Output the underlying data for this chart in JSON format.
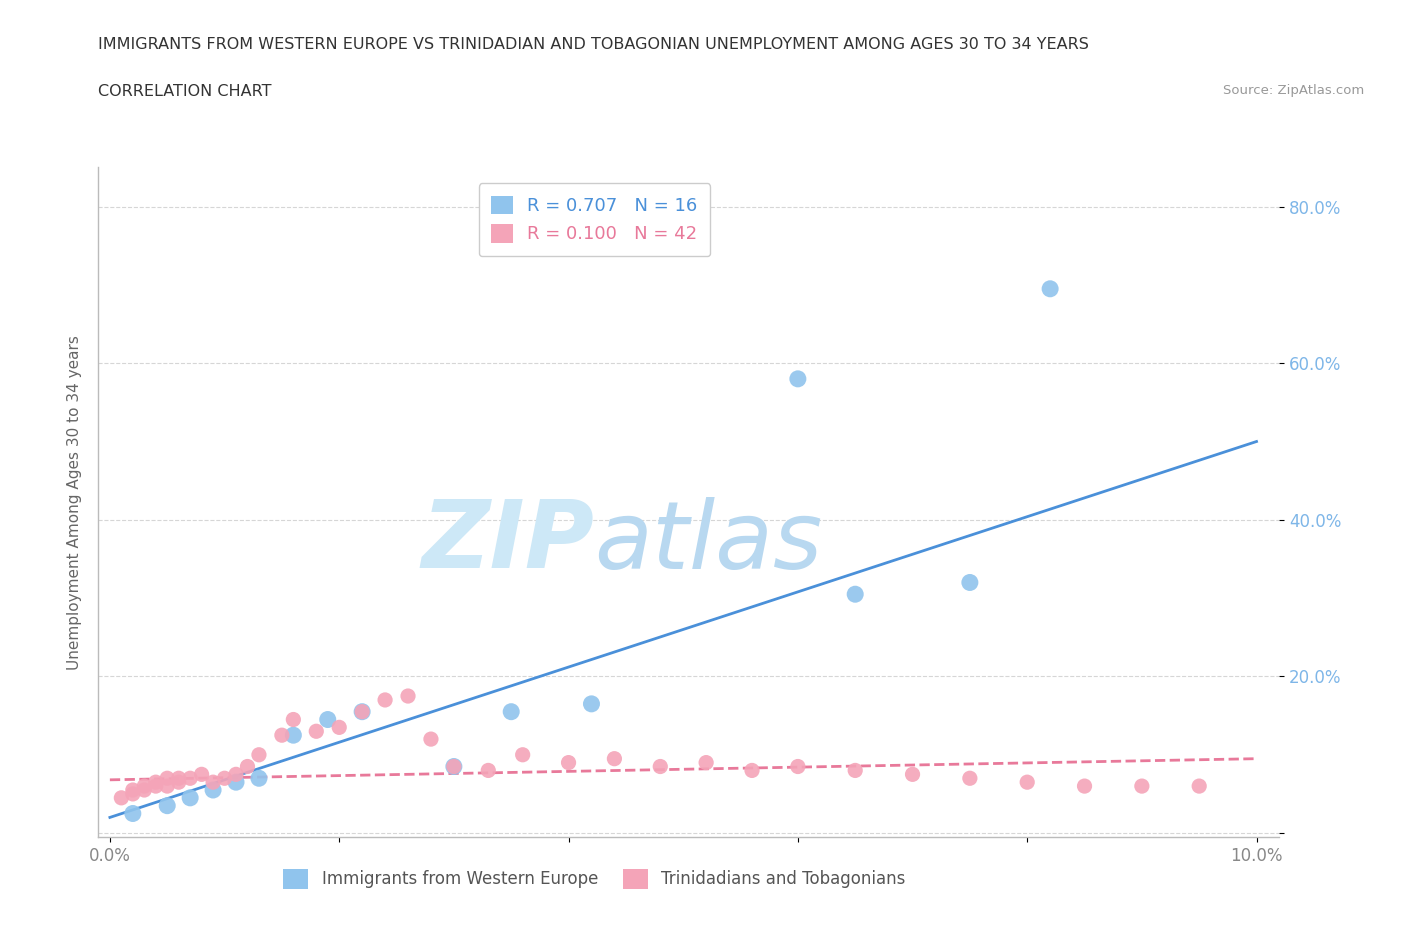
{
  "title_line1": "IMMIGRANTS FROM WESTERN EUROPE VS TRINIDADIAN AND TOBAGONIAN UNEMPLOYMENT AMONG AGES 30 TO 34 YEARS",
  "title_line2": "CORRELATION CHART",
  "source_text": "Source: ZipAtlas.com",
  "ylabel": "Unemployment Among Ages 30 to 34 years",
  "xlim": [
    -0.001,
    0.102
  ],
  "ylim": [
    -0.005,
    0.85
  ],
  "xticks": [
    0.0,
    0.02,
    0.04,
    0.06,
    0.08,
    0.1
  ],
  "xticklabels": [
    "0.0%",
    "",
    "",
    "",
    "",
    "10.0%"
  ],
  "yticks": [
    0.0,
    0.2,
    0.4,
    0.6,
    0.8
  ],
  "yticklabels": [
    "",
    "20.0%",
    "40.0%",
    "60.0%",
    "80.0%"
  ],
  "watermark_part1": "ZIP",
  "watermark_part2": "atlas",
  "legend_label_blue": "R = 0.707   N = 16",
  "legend_label_pink": "R = 0.100   N = 42",
  "bottom_label_blue": "Immigrants from Western Europe",
  "bottom_label_pink": "Trinidadians and Tobagonians",
  "blue_scatter_x": [
    0.002,
    0.005,
    0.007,
    0.009,
    0.011,
    0.013,
    0.016,
    0.019,
    0.022,
    0.03,
    0.035,
    0.042,
    0.06,
    0.065,
    0.075,
    0.082
  ],
  "blue_scatter_y": [
    0.025,
    0.035,
    0.045,
    0.055,
    0.065,
    0.07,
    0.125,
    0.145,
    0.155,
    0.085,
    0.155,
    0.165,
    0.58,
    0.305,
    0.32,
    0.695
  ],
  "pink_scatter_x": [
    0.001,
    0.002,
    0.002,
    0.003,
    0.003,
    0.004,
    0.004,
    0.005,
    0.005,
    0.006,
    0.006,
    0.007,
    0.008,
    0.009,
    0.01,
    0.011,
    0.012,
    0.013,
    0.015,
    0.016,
    0.018,
    0.02,
    0.022,
    0.024,
    0.026,
    0.028,
    0.03,
    0.033,
    0.036,
    0.04,
    0.044,
    0.048,
    0.052,
    0.056,
    0.06,
    0.065,
    0.07,
    0.075,
    0.08,
    0.085,
    0.09,
    0.095
  ],
  "pink_scatter_y": [
    0.045,
    0.05,
    0.055,
    0.055,
    0.06,
    0.06,
    0.065,
    0.06,
    0.07,
    0.065,
    0.07,
    0.07,
    0.075,
    0.065,
    0.07,
    0.075,
    0.085,
    0.1,
    0.125,
    0.145,
    0.13,
    0.135,
    0.155,
    0.17,
    0.175,
    0.12,
    0.085,
    0.08,
    0.1,
    0.09,
    0.095,
    0.085,
    0.09,
    0.08,
    0.085,
    0.08,
    0.075,
    0.07,
    0.065,
    0.06,
    0.06,
    0.06
  ],
  "blue_line_x": [
    0.0,
    0.1
  ],
  "blue_line_y": [
    0.02,
    0.5
  ],
  "pink_line_x": [
    0.0,
    0.1
  ],
  "pink_line_y": [
    0.068,
    0.095
  ],
  "blue_dot_color": "#90c4ed",
  "pink_dot_color": "#f4a4b8",
  "blue_line_color": "#4a90d9",
  "pink_line_color": "#e8799a",
  "blue_legend_color": "#90c4ed",
  "pink_legend_color": "#f4a4b8",
  "background_color": "#ffffff",
  "grid_color": "#cccccc",
  "title_color": "#333333",
  "axis_color": "#bbbbbb",
  "ytick_color": "#7eb6e8",
  "xtick_color": "#888888",
  "ylabel_color": "#666666",
  "watermark_color": "#cde8f7",
  "watermark_color2": "#b8d8f0"
}
